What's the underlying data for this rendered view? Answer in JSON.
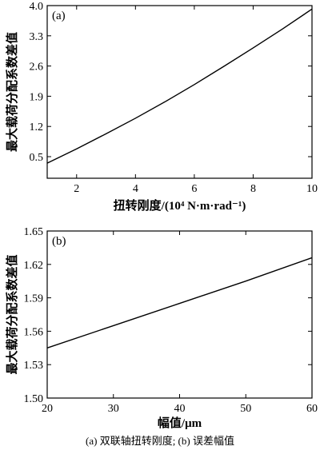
{
  "chart_data": [
    {
      "type": "line",
      "panel_label": "(a)",
      "xlabel": "扭转刚度/(10⁴ N·m·rad⁻¹)",
      "ylabel": "最大载荷分配系数差值",
      "xlim": [
        1,
        10
      ],
      "ylim": [
        0,
        4.0
      ],
      "xticks": [
        2,
        4,
        6,
        8,
        10
      ],
      "yticks": [
        0.5,
        1.2,
        1.9,
        2.6,
        3.3,
        4.0
      ],
      "grid": false,
      "series": [
        {
          "x": [
            1,
            2,
            3,
            4,
            5,
            6,
            7,
            8,
            9,
            10
          ],
          "values": [
            0.35,
            0.68,
            1.03,
            1.39,
            1.77,
            2.17,
            2.59,
            3.02,
            3.46,
            3.92
          ]
        }
      ]
    },
    {
      "type": "line",
      "panel_label": "(b)",
      "xlabel": "幅值/μm",
      "ylabel": "最大载荷分配系数差值",
      "xlim": [
        20,
        60
      ],
      "ylim": [
        1.5,
        1.65
      ],
      "xticks": [
        20,
        30,
        40,
        50,
        60
      ],
      "yticks": [
        1.5,
        1.53,
        1.56,
        1.59,
        1.62,
        1.65
      ],
      "grid": false,
      "series": [
        {
          "x": [
            20,
            30,
            40,
            50,
            60
          ],
          "values": [
            1.545,
            1.565,
            1.585,
            1.605,
            1.626
          ]
        }
      ]
    }
  ],
  "caption": "(a) 双联轴扭转刚度; (b) 误差幅值"
}
